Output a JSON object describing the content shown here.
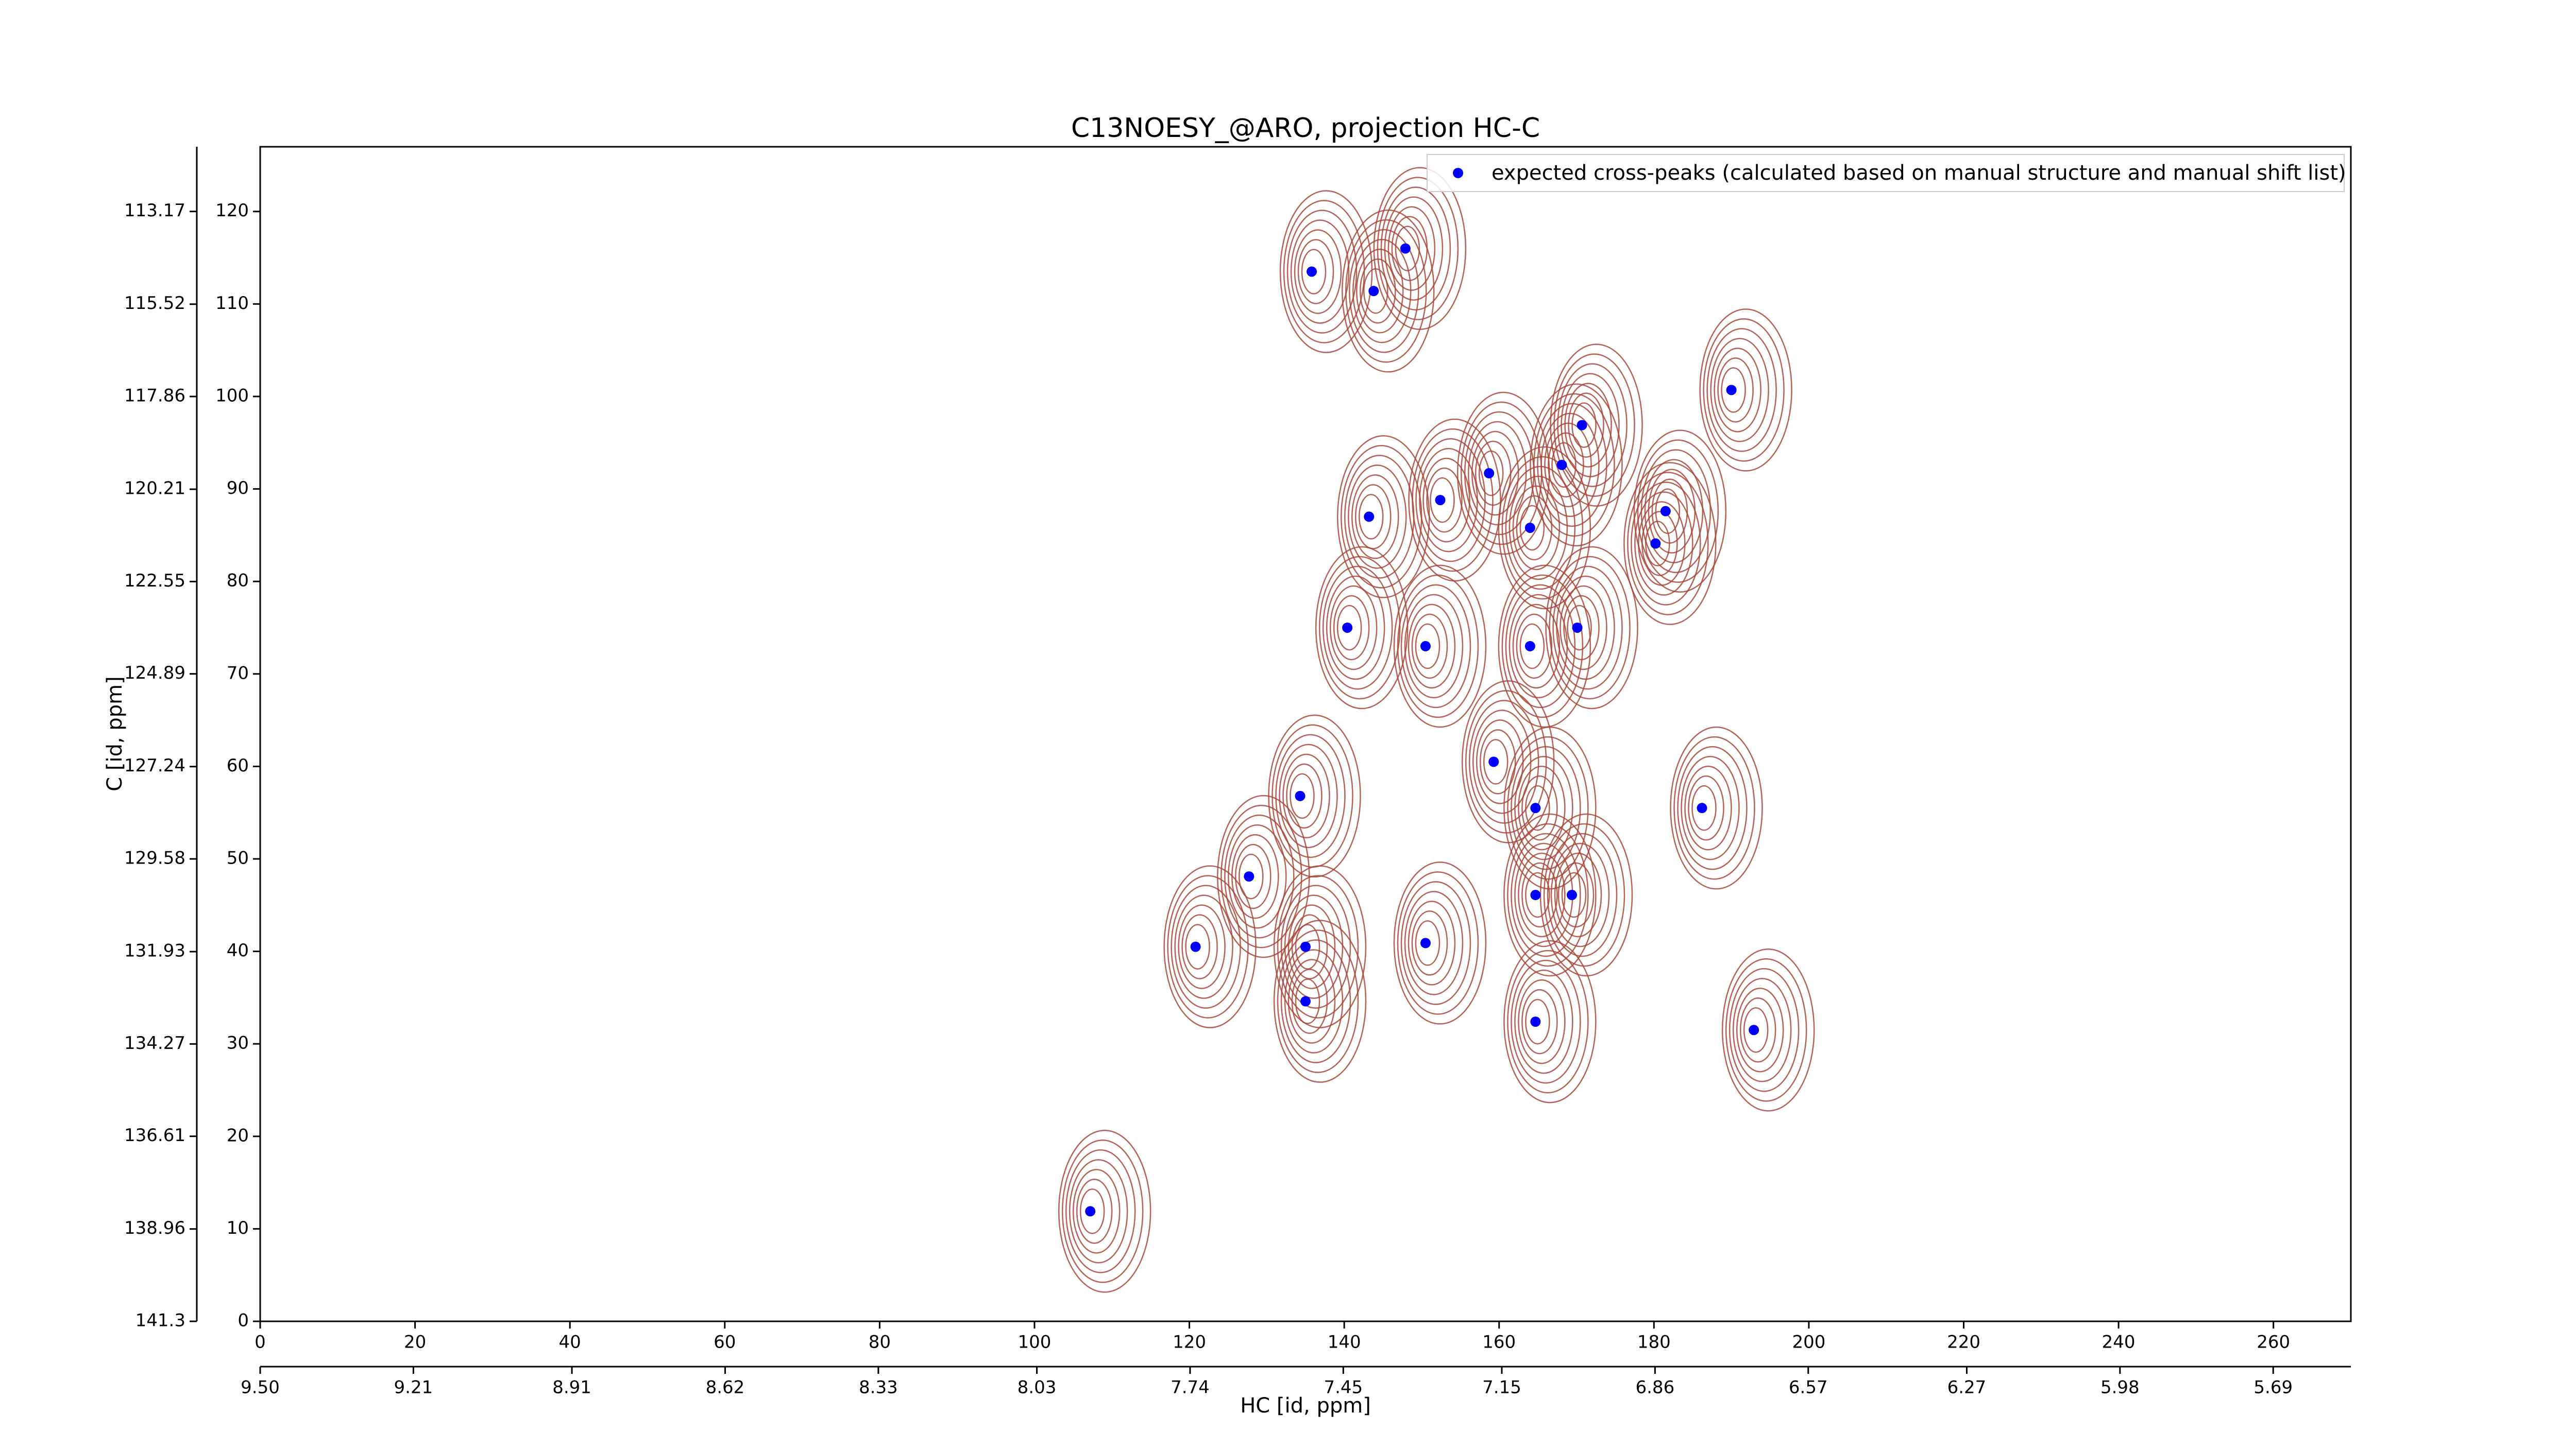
{
  "chart_data": {
    "type": "scatter",
    "title": "C13NOESY_@ARO, projection HC-C",
    "xlabel": "HC [id, ppm]",
    "ylabel": "C [id, ppm]",
    "xlim": [
      0,
      270
    ],
    "xticks": [
      0,
      20,
      40,
      60,
      80,
      100,
      120,
      140,
      160,
      180,
      200,
      220,
      240,
      260
    ],
    "ylim": [
      0,
      127
    ],
    "yticks": [
      0,
      10,
      20,
      30,
      40,
      50,
      60,
      70,
      80,
      90,
      100,
      110,
      120
    ],
    "x2lim": [
      9.5,
      5.543
    ],
    "x2ticks": [
      {
        "value": 9.5,
        "label": "9.50"
      },
      {
        "value": 9.21,
        "label": "9.21"
      },
      {
        "value": 8.91,
        "label": "8.91"
      },
      {
        "value": 8.62,
        "label": "8.62"
      },
      {
        "value": 8.33,
        "label": "8.33"
      },
      {
        "value": 8.03,
        "label": "8.03"
      },
      {
        "value": 7.74,
        "label": "7.74"
      },
      {
        "value": 7.45,
        "label": "7.45"
      },
      {
        "value": 7.15,
        "label": "7.15"
      },
      {
        "value": 6.86,
        "label": "6.86"
      },
      {
        "value": 6.57,
        "label": "6.57"
      },
      {
        "value": 6.27,
        "label": "6.27"
      },
      {
        "value": 5.98,
        "label": "5.98"
      },
      {
        "value": 5.69,
        "label": "5.69"
      }
    ],
    "y2lim": [
      141.3,
      111.53
    ],
    "y2ticks": [
      141.3,
      138.96,
      136.61,
      134.27,
      131.93,
      129.58,
      127.24,
      124.89,
      122.55,
      120.21,
      117.86,
      115.52,
      113.17
    ],
    "contour_color": "#a8463a",
    "legend": "upper right",
    "series": [
      {
        "name": "expected cross-peaks (calculated based on manual structure and manual shift list)",
        "color": "#0000ff",
        "x": [
          135.8,
          143.8,
          147.9,
          190.0,
          170.7,
          168.1,
          158.7,
          152.4,
          143.2,
          164.0,
          181.5,
          180.2,
          140.4,
          150.5,
          164.0,
          170.1,
          159.3,
          134.3,
          164.7,
          186.2,
          127.7,
          164.7,
          169.4,
          120.8,
          135.0,
          150.5,
          135.0,
          164.7,
          192.9,
          107.2
        ],
        "values": [
          113.5,
          111.4,
          116.0,
          100.7,
          96.9,
          92.6,
          91.7,
          88.8,
          87.0,
          85.8,
          87.6,
          84.1,
          75.0,
          73.0,
          73.0,
          75.0,
          60.5,
          56.8,
          55.5,
          55.5,
          48.1,
          46.1,
          46.1,
          40.5,
          40.5,
          40.9,
          34.6,
          32.4,
          31.5,
          11.9
        ]
      }
    ]
  }
}
